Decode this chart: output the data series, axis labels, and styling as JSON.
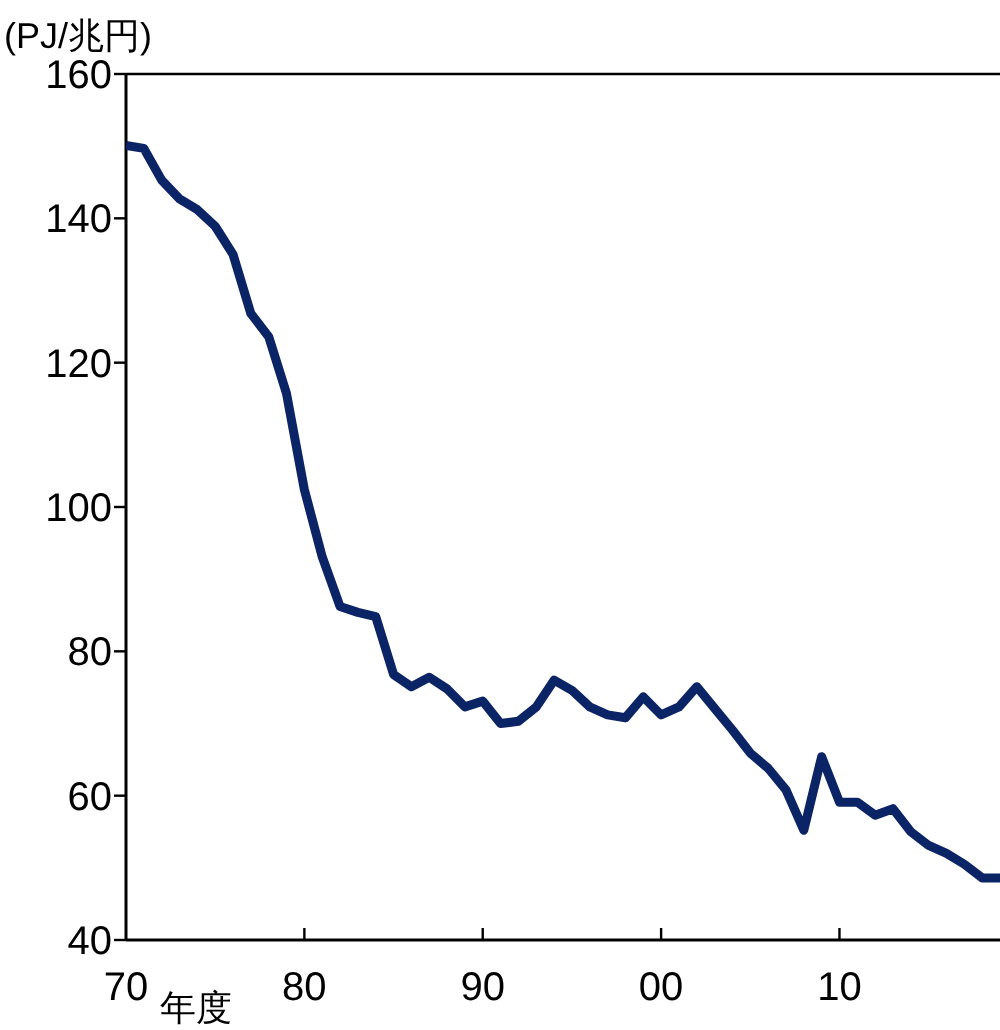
{
  "chart_data": {
    "type": "line",
    "ylabel": "(PJ/兆円)",
    "xlabel": "年度",
    "x": [
      1970,
      1971,
      1972,
      1973,
      1974,
      1975,
      1976,
      1977,
      1978,
      1979,
      1980,
      1981,
      1982,
      1983,
      1984,
      1985,
      1986,
      1987,
      1988,
      1989,
      1990,
      1991,
      1992,
      1993,
      1994,
      1995,
      1996,
      1997,
      1998,
      1999,
      2000,
      2001,
      2002,
      2003,
      2004,
      2005,
      2006,
      2007,
      2008,
      2009,
      2010,
      2011,
      2012,
      2013,
      2014,
      2015,
      2016,
      2017,
      2018,
      2019
    ],
    "series": [
      {
        "color": "#0b2466",
        "values": [
          150.1,
          149.7,
          145.3,
          142.7,
          141.2,
          138.9,
          135,
          126.8,
          123.6,
          115.7,
          102.4,
          93.1,
          86.2,
          85.4,
          84.8,
          76.8,
          75.1,
          76.4,
          74.8,
          72.3,
          73.1,
          70,
          70.3,
          72.3,
          76,
          74.6,
          72.3,
          71.2,
          70.8,
          73.7,
          71.2,
          72.3,
          75.1,
          72.1,
          69.1,
          65.9,
          63.8,
          60.8,
          55.2,
          65.4,
          59.1,
          59.1,
          57.3,
          58.2,
          55,
          53.1,
          52,
          50.5,
          48.6,
          48.6
        ]
      }
    ],
    "xlim": [
      1970,
      2019
    ],
    "ylim": [
      40,
      160
    ],
    "xticks": [
      {
        "value": 1970,
        "label": "70"
      },
      {
        "value": 1980,
        "label": "80"
      },
      {
        "value": 1990,
        "label": "90"
      },
      {
        "value": 2000,
        "label": "00"
      },
      {
        "value": 2010,
        "label": "10"
      }
    ],
    "yticks": [
      40,
      60,
      80,
      100,
      120,
      140,
      160
    ]
  }
}
